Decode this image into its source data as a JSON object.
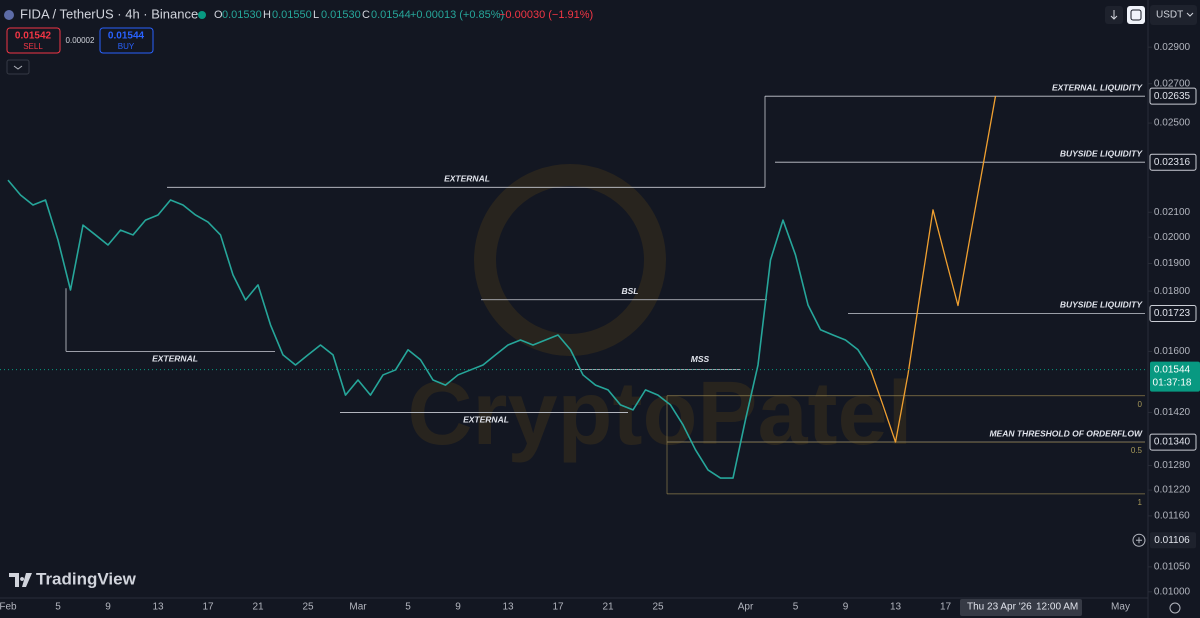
{
  "header": {
    "symbol": "FIDA / TetherUS · 4h · Binance",
    "ohlc": [
      {
        "key": "O",
        "value": "0.01530"
      },
      {
        "key": "H",
        "value": "0.01550"
      },
      {
        "key": "L",
        "value": "0.01530"
      },
      {
        "key": "C",
        "value": "0.01544"
      }
    ],
    "change": "+0.00013 (+0.85%)",
    "change2": "−0.00030 (−1.91%)",
    "sell_price": "0.01542",
    "sell": "SELL",
    "spread": "0.00002",
    "buy_price": "0.01544",
    "buy": "BUY",
    "currency": "USDT",
    "logo": "TradingView",
    "watermark": "CryptoPatel"
  },
  "chart_data": {
    "type": "line",
    "log": true,
    "ylim": [
      0.00988,
      0.0318
    ],
    "yticks": [
      {
        "value": 0.029,
        "label": "0.02900"
      },
      {
        "value": 0.027,
        "label": "0.02700"
      },
      {
        "value": 0.025,
        "label": "0.02500"
      },
      {
        "value": 0.021,
        "label": "0.02100"
      },
      {
        "value": 0.02,
        "label": "0.02000"
      },
      {
        "value": 0.019,
        "label": "0.01900"
      },
      {
        "value": 0.018,
        "label": "0.01800"
      },
      {
        "value": 0.016,
        "label": "0.01600"
      },
      {
        "value": 0.0142,
        "label": "0.01420"
      },
      {
        "value": 0.0128,
        "label": "0.01280"
      },
      {
        "value": 0.0122,
        "label": "0.01220"
      },
      {
        "value": 0.0116,
        "label": "0.01160"
      },
      {
        "value": 0.0105,
        "label": "0.01050"
      },
      {
        "value": 0.01,
        "label": "0.01000"
      }
    ],
    "categories": [
      "Feb",
      null,
      null,
      null,
      "5",
      null,
      null,
      null,
      "9",
      null,
      null,
      null,
      "13",
      null,
      null,
      null,
      "17",
      null,
      null,
      null,
      "21",
      null,
      null,
      null,
      "25",
      null,
      null,
      null,
      "Mar",
      null,
      null,
      null,
      "5",
      null,
      null,
      null,
      "9",
      null,
      null,
      null,
      "13",
      null,
      null,
      null,
      "17",
      null,
      null,
      null,
      "21",
      null,
      null,
      null,
      "25",
      null,
      null,
      null,
      null,
      null,
      null,
      "Apr",
      null,
      null,
      null,
      "5",
      null,
      null,
      null,
      "9",
      null,
      null,
      null,
      "13",
      null,
      null,
      null,
      "17",
      null,
      null,
      null,
      null,
      null,
      null,
      null,
      null,
      null,
      null,
      null,
      null,
      null,
      "May"
    ],
    "series": [
      {
        "color": "#26a69a",
        "values": [
          0.02236,
          0.02172,
          0.0213,
          0.02151,
          0.01989,
          0.01804,
          0.02048,
          0.02009,
          0.0197,
          0.02028,
          0.02009,
          0.02068,
          0.02089,
          0.02151,
          0.0213,
          0.02089,
          0.0206,
          0.02009,
          0.01858,
          0.01769,
          0.01822,
          0.01685,
          0.01589,
          0.01558,
          0.01589,
          0.0162,
          0.01589,
          0.01469,
          0.01513,
          0.01469,
          0.01528,
          0.01543,
          0.01605,
          0.01574,
          0.01513,
          0.01498,
          0.01528,
          0.01543,
          0.01558,
          0.01589,
          0.0162,
          0.01636,
          0.0162,
          0.01636,
          0.01652,
          0.01605,
          0.01528,
          0.01498,
          0.01484,
          0.01441,
          0.01427,
          0.01484,
          0.01469,
          0.01441,
          0.01386,
          0.0132,
          0.01269,
          0.01249,
          0.01249,
          0.014,
          0.01558,
          0.01913,
          0.02068,
          0.01932,
          0.01752,
          0.01669,
          0.01652,
          0.01636,
          0.01605,
          0.01544,
          null,
          null,
          null,
          null,
          null,
          null,
          null,
          null,
          null,
          null,
          null,
          null,
          null,
          null,
          null,
          null,
          null,
          null,
          null,
          null
        ]
      },
      {
        "color": "#f0a030",
        "values": [
          null,
          null,
          null,
          null,
          null,
          null,
          null,
          null,
          null,
          null,
          null,
          null,
          null,
          null,
          null,
          null,
          null,
          null,
          null,
          null,
          null,
          null,
          null,
          null,
          null,
          null,
          null,
          null,
          null,
          null,
          null,
          null,
          null,
          null,
          null,
          null,
          null,
          null,
          null,
          null,
          null,
          null,
          null,
          null,
          null,
          null,
          null,
          null,
          null,
          null,
          null,
          null,
          null,
          null,
          null,
          null,
          null,
          null,
          null,
          null,
          null,
          null,
          null,
          null,
          null,
          null,
          null,
          null,
          null,
          0.01544,
          0.0144,
          0.0134,
          0.0153,
          0.018,
          0.0211,
          0.0192,
          0.0175,
          0.0201,
          0.023,
          0.02635,
          null,
          null,
          null,
          null,
          null,
          null,
          null,
          null,
          null,
          null
        ]
      }
    ],
    "annotations": [
      {
        "label": "EXTERNAL LIQUIDITY",
        "price": 0.02635,
        "axis_label": "0.02635"
      },
      {
        "label": "BUYSIDE LIQUIDITY",
        "price": 0.02316,
        "axis_label": "0.02316"
      },
      {
        "label": "BUYSIDE LIQUIDITY",
        "price": 0.01723,
        "axis_label": "0.01723"
      },
      {
        "label": "MEAN THRESHOLD OF ORDERFLOW",
        "price": 0.0134,
        "axis_label": "0.01340"
      },
      {
        "label": "EXTERNAL",
        "price": 0.02205
      },
      {
        "label": "EXTERNAL",
        "price": 0.016
      },
      {
        "label": "EXTERNAL",
        "price": 0.0142
      },
      {
        "label": "BSL",
        "price": 0.0177
      },
      {
        "label": "MSS",
        "price": 0.01544
      }
    ],
    "fib": [
      {
        "level": 0,
        "price": 0.01467
      },
      {
        "level": 0.5,
        "price": 0.0134
      },
      {
        "level": 1,
        "price": 0.01211
      }
    ],
    "current_price": {
      "value": 0.01544,
      "countdown": "01:37:18"
    },
    "crosshair": {
      "price": 0.01106,
      "date": "Thu 23 Apr '26",
      "time": "12:00 AM"
    }
  }
}
